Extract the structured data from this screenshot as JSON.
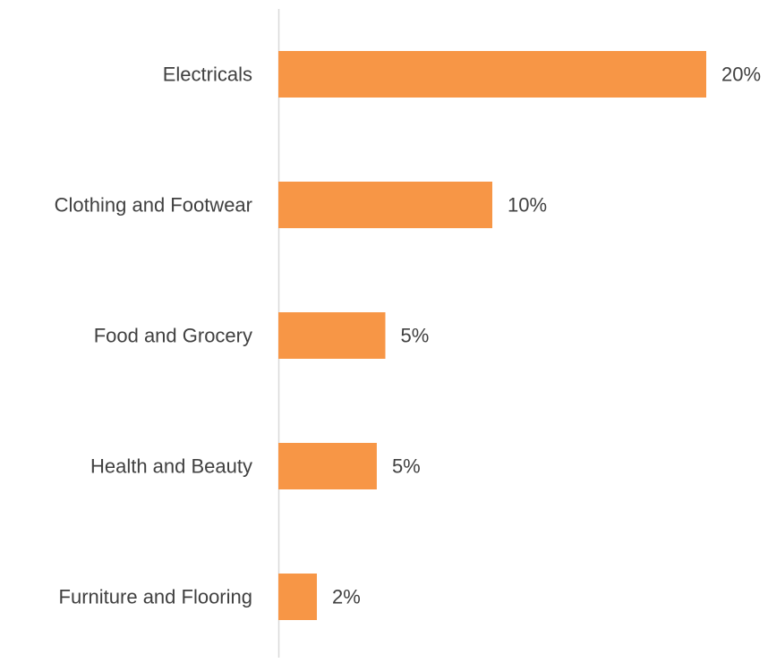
{
  "chart_data": {
    "type": "bar",
    "orientation": "horizontal",
    "categories": [
      "Electricals",
      "Clothing and Footwear",
      "Food and Grocery",
      "Health and Beauty",
      "Furniture and Flooring"
    ],
    "values": [
      20,
      10,
      5,
      4.6,
      1.8
    ],
    "data_labels": [
      "20%",
      "10%",
      "5%",
      "5%",
      "2%"
    ],
    "title": "",
    "xlabel": "",
    "ylabel": "",
    "xlim": [
      0,
      20
    ],
    "grid": false,
    "legend": "none",
    "colors": {
      "bar": "#F79646",
      "axis": "#D9D9D9",
      "text": "#404040"
    }
  }
}
